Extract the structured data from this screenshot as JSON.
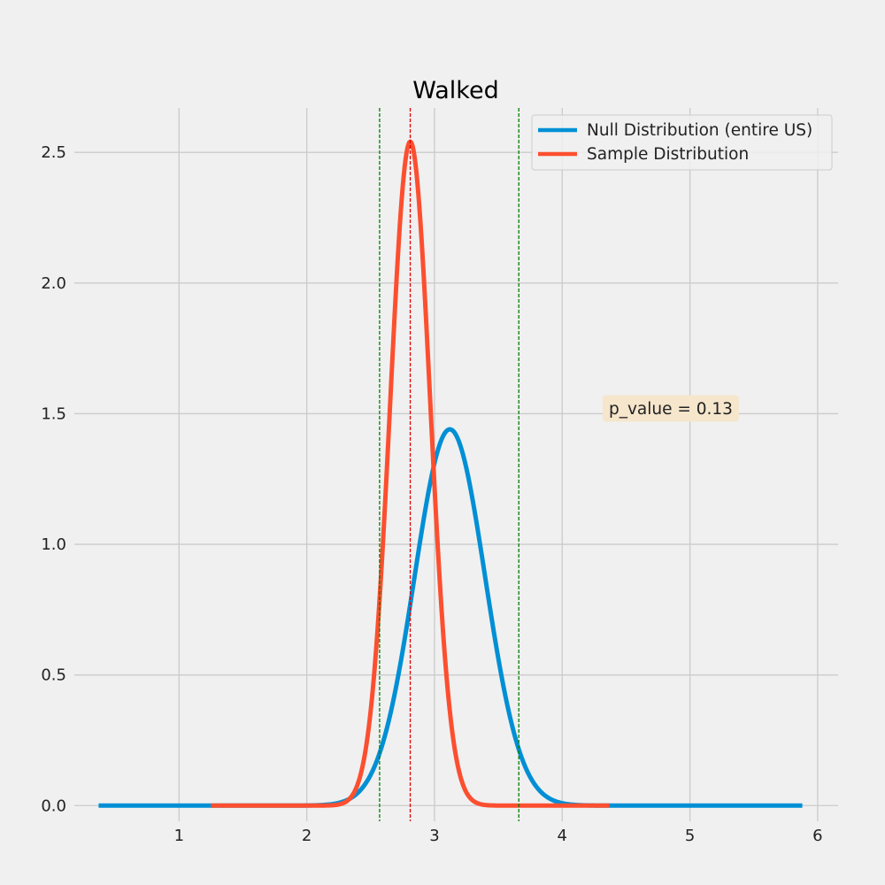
{
  "chart_data": {
    "type": "line",
    "title": "Walked",
    "xlabel": "",
    "ylabel": "",
    "xlim": [
      0.18,
      6.16
    ],
    "ylim": [
      -0.06,
      2.67
    ],
    "xticks": [
      1,
      2,
      3,
      4,
      5,
      6
    ],
    "xtick_labels": [
      "1",
      "2",
      "3",
      "4",
      "5",
      "6"
    ],
    "yticks": [
      0.0,
      0.5,
      1.0,
      1.5,
      2.0,
      2.5
    ],
    "ytick_labels": [
      "0.0",
      "0.5",
      "1.0",
      "1.5",
      "2.0",
      "2.5"
    ],
    "grid": true,
    "legend_position": "top-right",
    "series": [
      {
        "name": "Null Distribution (entire US)",
        "color": "#008fd5",
        "distribution": "normal",
        "mean": 3.12,
        "std": 0.277,
        "x_range": [
          0.37,
          5.88
        ]
      },
      {
        "name": "Sample Distribution",
        "color": "#fc4f30",
        "distribution": "normal",
        "mean": 2.81,
        "std": 0.157,
        "x_range": [
          1.25,
          4.37
        ]
      }
    ],
    "vlines": [
      {
        "x": 2.57,
        "color": "#008000",
        "style": "dashed"
      },
      {
        "x": 2.81,
        "color": "#e00000",
        "style": "dashed"
      },
      {
        "x": 3.66,
        "color": "#008000",
        "style": "dashed"
      }
    ],
    "annotation": {
      "text": "p_value = 0.13",
      "x": 4.85,
      "y": 1.52,
      "box_color": "#f5e6cc"
    }
  }
}
